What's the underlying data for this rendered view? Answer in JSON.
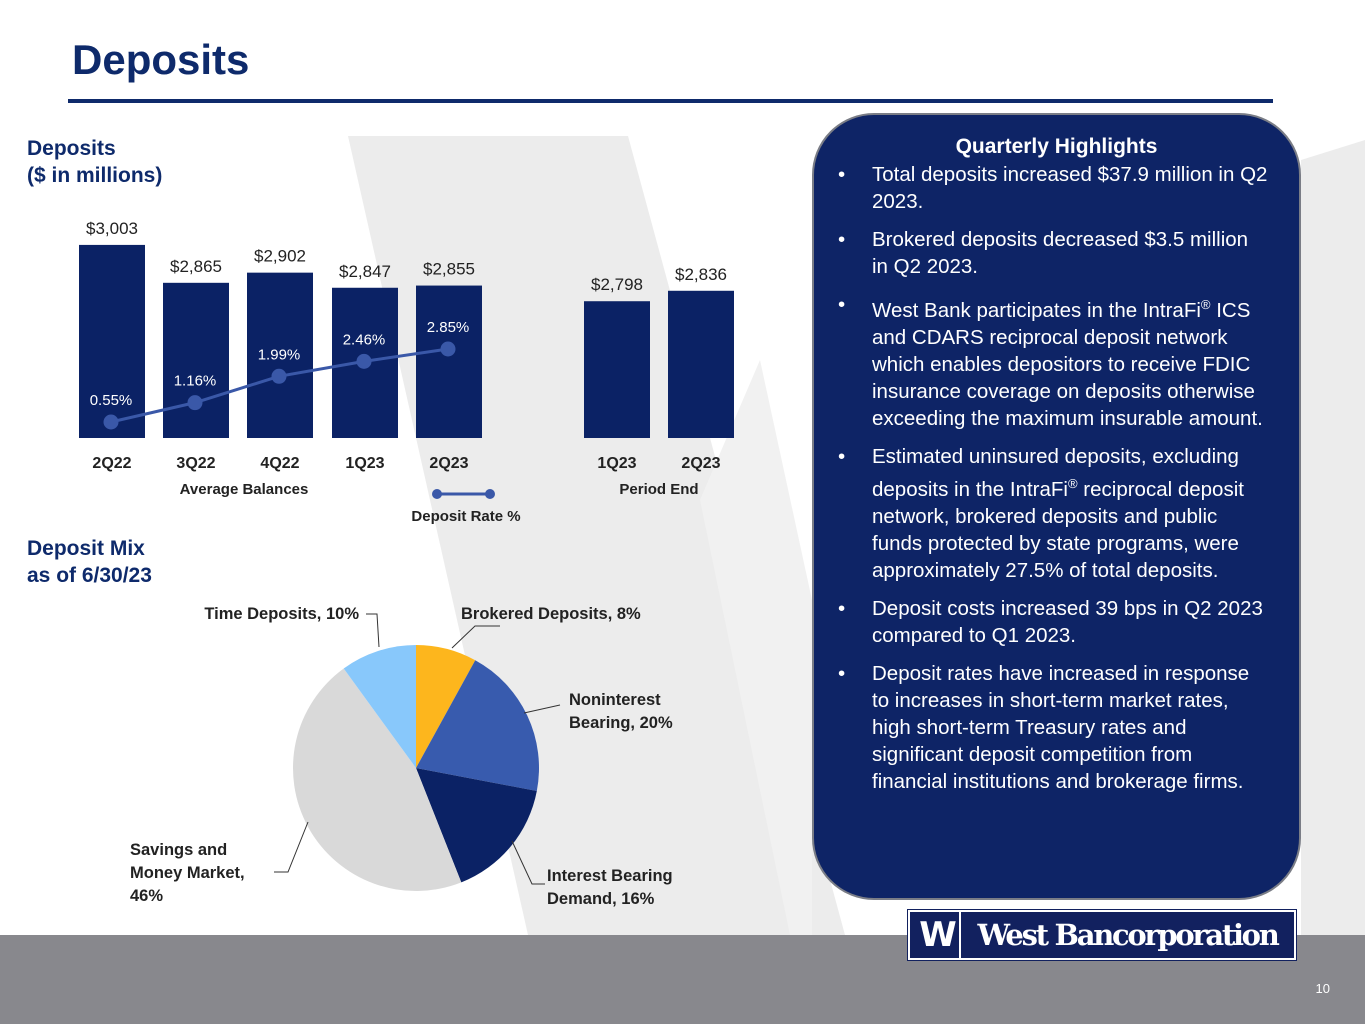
{
  "page": {
    "title": "Deposits",
    "page_number": "10",
    "logo_mark": "W",
    "logo_text": "West Bancorporation"
  },
  "colors": {
    "navy": "#0e2a6b",
    "bar": "#0b2265",
    "line": "#3a58a8",
    "footer": "#88888d",
    "pie_brokered": "#fdb61d",
    "pie_noninterest": "#385bae",
    "pie_interest": "#0b2265",
    "pie_savings": "#d9d9d9",
    "pie_time": "#88c8fb"
  },
  "deposits_section": {
    "title_line1": "Deposits",
    "title_line2": "($ in millions)"
  },
  "mix_section": {
    "title_line1": "Deposit Mix",
    "title_line2": "as of 6/30/23"
  },
  "chart_data": [
    {
      "type": "bar",
      "group_label": "Average Balances",
      "categories": [
        "2Q22",
        "3Q22",
        "4Q22",
        "1Q23",
        "2Q23"
      ],
      "values": [
        3003,
        2865,
        2902,
        2847,
        2855
      ],
      "value_labels": [
        "$3,003",
        "$2,865",
        "$2,902",
        "$2,847",
        "$2,855"
      ],
      "ylim": [
        2300,
        3050
      ],
      "series": [
        {
          "name": "Deposit Rate  %",
          "type": "line",
          "values": [
            0.55,
            1.16,
            1.99,
            2.46,
            2.85
          ],
          "value_labels": [
            "0.55%",
            "1.16%",
            "1.99%",
            "2.46%",
            "2.85%"
          ]
        }
      ]
    },
    {
      "type": "bar",
      "group_label": "Period End",
      "categories": [
        "1Q23",
        "2Q23"
      ],
      "values": [
        2798,
        2836
      ],
      "value_labels": [
        "$2,798",
        "$2,836"
      ],
      "ylim": [
        2300,
        3050
      ]
    },
    {
      "type": "pie",
      "slices": [
        {
          "label": "Brokered Deposits, 8%",
          "value": 8,
          "color": "#fdb61d"
        },
        {
          "label": "Noninterest Bearing, 20%",
          "value": 20,
          "color": "#385bae"
        },
        {
          "label": "Interest Bearing Demand, 16%",
          "value": 16,
          "color": "#0b2265"
        },
        {
          "label": "Savings and Money Market, 46%",
          "value": 46,
          "color": "#d9d9d9"
        },
        {
          "label": "Time Deposits, 10%",
          "value": 10,
          "color": "#88c8fb"
        }
      ]
    }
  ],
  "pie_labels": {
    "time": [
      "Time Deposits, 10%"
    ],
    "brokered": [
      "Brokered Deposits, 8%"
    ],
    "noninterest": [
      "Noninterest",
      "Bearing, 20%"
    ],
    "interest": [
      "Interest Bearing",
      "Demand, 16%"
    ],
    "savings": [
      "Savings and",
      "Money Market,",
      "46%"
    ]
  },
  "highlights": {
    "title": "Quarterly Highlights",
    "bullet_char": "•",
    "items": [
      "Total deposits increased $37.9 million in Q2 2023.",
      "Brokered deposits decreased $3.5 million in Q2 2023.",
      "West Bank participates in the IntraFi® ICS and CDARS reciprocal deposit network which enables depositors to receive FDIC insurance coverage on deposits otherwise exceeding the maximum insurable amount.",
      "Estimated uninsured deposits, excluding deposits in the IntraFi® reciprocal deposit network, brokered deposits and public funds protected by state programs, were approximately 27.5% of total deposits.",
      "Deposit costs increased 39 bps in Q2 2023 compared to Q1 2023.",
      "Deposit rates have increased in response to increases in short-term market rates, high short-term Treasury rates and significant deposit competition from financial institutions and brokerage firms."
    ]
  }
}
